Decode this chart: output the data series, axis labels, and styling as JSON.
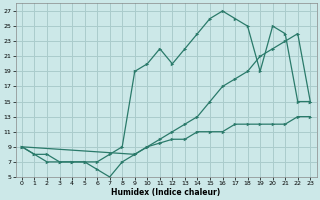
{
  "xlabel": "Humidex (Indice chaleur)",
  "bg_color": "#cce8e8",
  "grid_color": "#aacccc",
  "line_color": "#2a7a6a",
  "line_top_x": [
    0,
    1,
    2,
    3,
    4,
    5,
    6,
    7,
    8,
    9,
    10,
    11,
    12,
    13,
    14,
    15,
    16,
    17,
    18,
    19,
    20,
    21,
    22,
    23
  ],
  "line_top_y": [
    9,
    8,
    8,
    7,
    7,
    7,
    7,
    8,
    9,
    19,
    20,
    22,
    20,
    22,
    24,
    26,
    27,
    26,
    25,
    19,
    25,
    24,
    15,
    15
  ],
  "line_bot_x": [
    0,
    1,
    2,
    3,
    4,
    5,
    6,
    7,
    8,
    9,
    10,
    11,
    12,
    13,
    14,
    15,
    16,
    17,
    18,
    19,
    20,
    21,
    22,
    23
  ],
  "line_bot_y": [
    9,
    8,
    7,
    7,
    7,
    7,
    6,
    5,
    7,
    8,
    9,
    9.5,
    10,
    10,
    11,
    11,
    11,
    12,
    12,
    12,
    12,
    12,
    13,
    13
  ],
  "line_diag_x": [
    0,
    9,
    10,
    11,
    12,
    13,
    14,
    15,
    16,
    17,
    18,
    19,
    20,
    21,
    22,
    23
  ],
  "line_diag_y": [
    9,
    8,
    9,
    10,
    11,
    12,
    13,
    15,
    17,
    18,
    19,
    21,
    22,
    23,
    24,
    15
  ],
  "ylim": [
    5,
    28
  ],
  "xlim": [
    -0.5,
    23.5
  ],
  "yticks": [
    5,
    7,
    9,
    11,
    13,
    15,
    17,
    19,
    21,
    23,
    25,
    27
  ],
  "xticks": [
    0,
    1,
    2,
    3,
    4,
    5,
    6,
    7,
    8,
    9,
    10,
    11,
    12,
    13,
    14,
    15,
    16,
    17,
    18,
    19,
    20,
    21,
    22,
    23
  ]
}
